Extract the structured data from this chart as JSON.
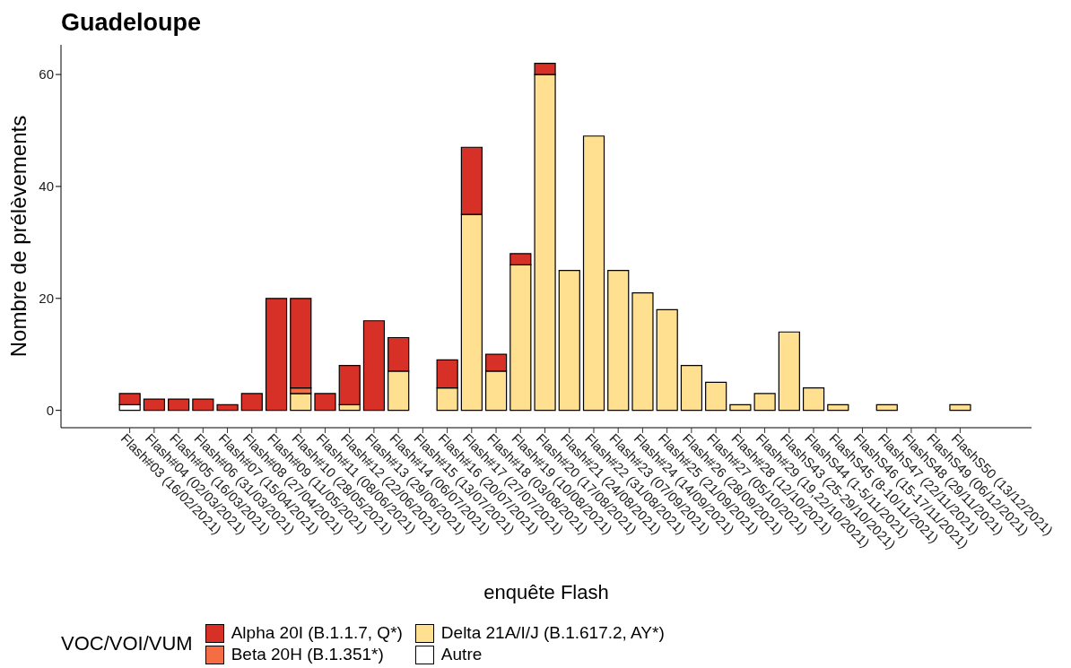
{
  "chart_data": {
    "type": "bar",
    "title": "Guadeloupe",
    "xlabel": "enquête Flash",
    "ylabel": "Nombre de prélèvements",
    "legend_title": "VOC/VOI/VUM",
    "categories": [
      "Flash#03 (16/02/2021)",
      "Flash#04 (02/03/2021)",
      "Flash#05 (16/03/2021)",
      "Flash#06 (31/03/2021)",
      "Flash#07 (15/04/2021)",
      "Flash#08 (27/04/2021)",
      "Flash#09 (11/05/2021)",
      "Flash#10 (28/05/2021)",
      "Flash#11 (08/06/2021)",
      "Flash#12 (22/06/2021)",
      "Flash#13 (29/06/2021)",
      "Flash#14 (06/07/2021)",
      "Flash#15 (13/07/2021)",
      "Flash#16 (20/07/2021)",
      "Flash#17 (27/07/2021)",
      "Flash#18 (03/08/2021)",
      "Flash#19 (10/08/2021)",
      "Flash#20 (17/08/2021)",
      "Flash#21 (24/08/2021)",
      "Flash#22 (31/08/2021)",
      "Flash#23 (07/09/2021)",
      "Flash#24 (14/09/2021)",
      "Flash#25 (21/09/2021)",
      "Flash#26 (28/09/2021)",
      "Flash#27 (05/10/2021)",
      "Flash#28 (12/10/2021)",
      "Flash#29 (19,22/10/2021)",
      "FlashS43 (25-29/10/2021)",
      "FlashS44 (1-5/11/2021)",
      "FlashS45 (8-10/11/2021)",
      "FlashS46 (15-17/11/2021)",
      "FlashS47 (22/11/2021)",
      "FlashS48 (29/11/2021)",
      "FlashS49 (06/12/2021)",
      "FlashS50 (13/12/2021)"
    ],
    "stacked": true,
    "series": [
      {
        "name": "Autre",
        "color": "#ffffff",
        "values": [
          1,
          0,
          0,
          0,
          0,
          0,
          0,
          0,
          0,
          0,
          0,
          0,
          0,
          0,
          0,
          0,
          0,
          0,
          0,
          0,
          0,
          0,
          0,
          0,
          0,
          0,
          0,
          0,
          0,
          0,
          0,
          0,
          0,
          0,
          0
        ]
      },
      {
        "name": "Delta 21A/I/J (B.1.617.2, AY*)",
        "color": "#fee090",
        "values": [
          0,
          0,
          0,
          0,
          0,
          0,
          0,
          3,
          0,
          1,
          0,
          7,
          0,
          4,
          35,
          7,
          26,
          60,
          25,
          49,
          25,
          21,
          18,
          8,
          5,
          1,
          3,
          14,
          4,
          1,
          0,
          1,
          0,
          0,
          1
        ]
      },
      {
        "name": "Beta 20H (B.1.351*)",
        "color": "#f46d43",
        "values": [
          0,
          0,
          0,
          0,
          0,
          0,
          0,
          1,
          0,
          0,
          0,
          0,
          0,
          0,
          0,
          0,
          0,
          0,
          0,
          0,
          0,
          0,
          0,
          0,
          0,
          0,
          0,
          0,
          0,
          0,
          0,
          0,
          0,
          0,
          0
        ]
      },
      {
        "name": "Alpha 20I (B.1.1.7, Q*)",
        "color": "#d73027",
        "values": [
          2,
          2,
          2,
          2,
          1,
          3,
          20,
          16,
          3,
          7,
          16,
          6,
          0,
          5,
          12,
          3,
          2,
          2,
          0,
          0,
          0,
          0,
          0,
          0,
          0,
          0,
          0,
          0,
          0,
          0,
          0,
          0,
          0,
          0,
          0
        ]
      }
    ],
    "ylim": [
      -3.1,
      65.3
    ],
    "yticks": [
      0,
      20,
      40,
      60
    ],
    "grid": false,
    "legend": "bottom"
  }
}
